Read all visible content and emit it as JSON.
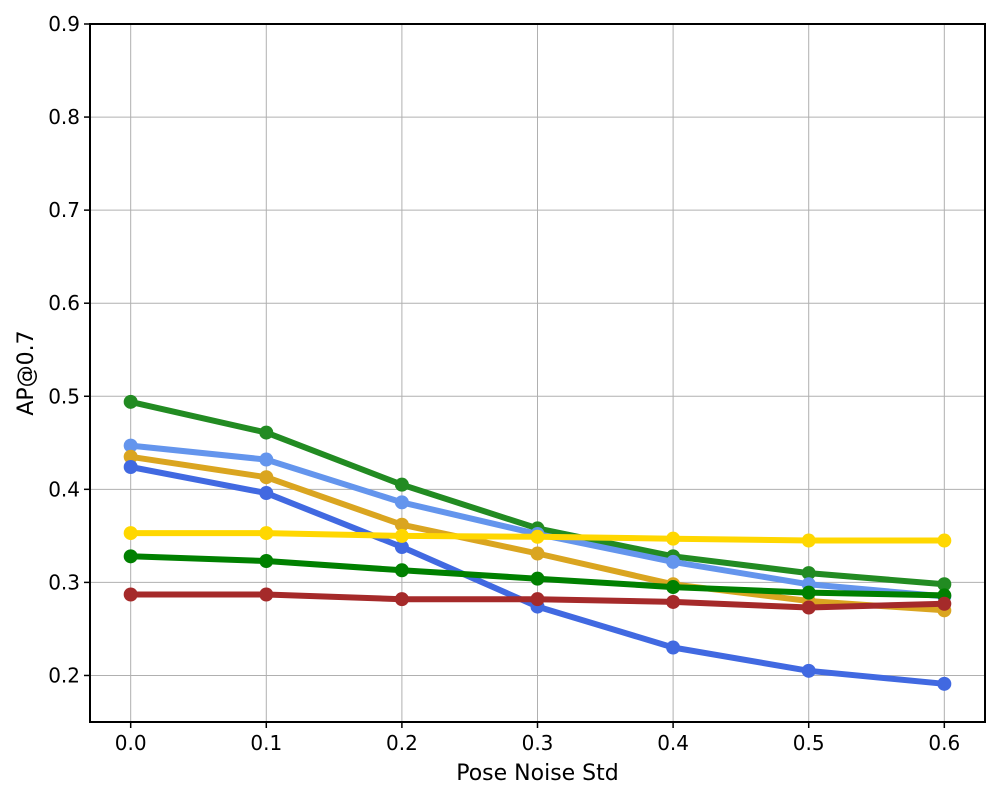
{
  "chart_data": {
    "type": "line",
    "title": "",
    "xlabel": "Pose Noise Std",
    "ylabel": "AP@0.7",
    "x": [
      0.0,
      0.1,
      0.2,
      0.3,
      0.4,
      0.5,
      0.6
    ],
    "x_tick_labels": [
      "0.0",
      "0.1",
      "0.2",
      "0.3",
      "0.4",
      "0.5",
      "0.6"
    ],
    "xlim": [
      -0.03,
      0.63
    ],
    "y_ticks": [
      0.2,
      0.3,
      0.4,
      0.5,
      0.6,
      0.7,
      0.8,
      0.9
    ],
    "y_tick_labels": [
      "0.2",
      "0.3",
      "0.4",
      "0.5",
      "0.6",
      "0.7",
      "0.8",
      "0.9"
    ],
    "ylim": [
      0.15,
      0.9
    ],
    "grid": true,
    "legend": "none",
    "series": [
      {
        "color": "#228B22",
        "values": [
          0.494,
          0.461,
          0.405,
          0.358,
          0.328,
          0.31,
          0.298
        ]
      },
      {
        "color": "#6495ED",
        "values": [
          0.447,
          0.432,
          0.386,
          0.352,
          0.322,
          0.298,
          0.285
        ]
      },
      {
        "color": "#DAA520",
        "values": [
          0.435,
          0.413,
          0.362,
          0.331,
          0.298,
          0.28,
          0.27
        ]
      },
      {
        "color": "#4169E1",
        "values": [
          0.424,
          0.396,
          0.338,
          0.274,
          0.23,
          0.205,
          0.191
        ]
      },
      {
        "color": "#FFD700",
        "values": [
          0.353,
          0.353,
          0.35,
          0.349,
          0.347,
          0.345,
          0.345
        ]
      },
      {
        "color": "#008000",
        "values": [
          0.328,
          0.323,
          0.313,
          0.304,
          0.295,
          0.289,
          0.286
        ]
      },
      {
        "color": "#A52A2A",
        "values": [
          0.287,
          0.287,
          0.282,
          0.282,
          0.279,
          0.273,
          0.277
        ]
      }
    ]
  }
}
